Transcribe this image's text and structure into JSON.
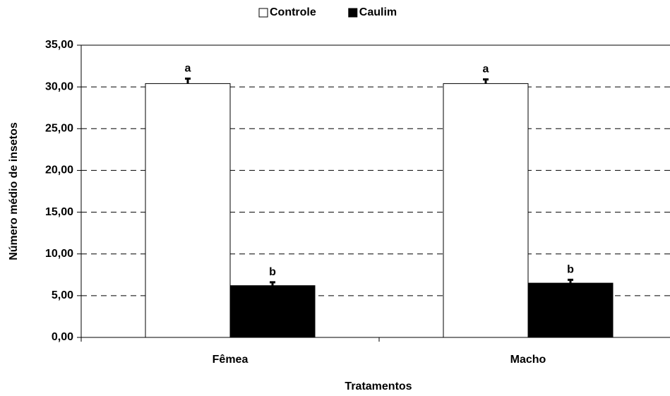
{
  "chart_data": {
    "type": "bar",
    "categories": [
      "Fêmea",
      "Macho"
    ],
    "series": [
      {
        "name": "Controle",
        "color": "#ffffff",
        "values": [
          30.4,
          30.4
        ],
        "errors": [
          0.6,
          0.5
        ],
        "labels": [
          "a",
          "a"
        ]
      },
      {
        "name": "Caulim",
        "color": "#000000",
        "values": [
          6.2,
          6.5
        ],
        "errors": [
          0.4,
          0.4
        ],
        "labels": [
          "b",
          "b"
        ]
      }
    ],
    "x_label": "Tratamentos",
    "y_label": "Número médio de insetos",
    "ylim": [
      0,
      35
    ],
    "yticks": [
      {
        "value": 0,
        "label": "0,00"
      },
      {
        "value": 5,
        "label": "5,00"
      },
      {
        "value": 10,
        "label": "10,00"
      },
      {
        "value": 15,
        "label": "15,00"
      },
      {
        "value": 20,
        "label": "20,00"
      },
      {
        "value": 25,
        "label": "25,00"
      },
      {
        "value": 30,
        "label": "30,00"
      },
      {
        "value": 35,
        "label": "35,00"
      }
    ],
    "grid": true,
    "legend": "top"
  }
}
